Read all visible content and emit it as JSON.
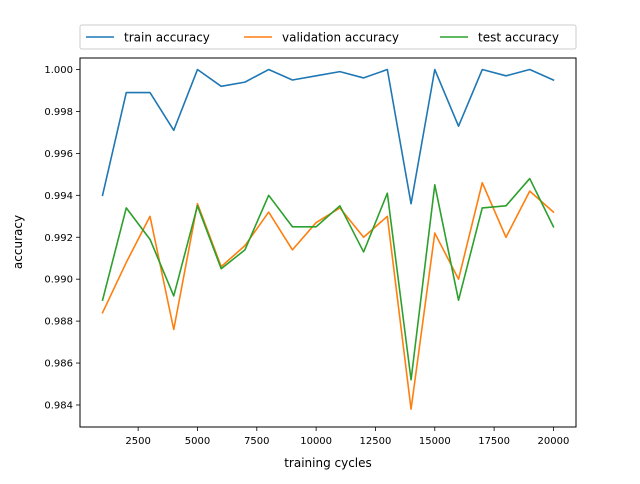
{
  "chart_data": {
    "type": "line",
    "xlabel": "training cycles",
    "ylabel": "accuracy",
    "xlim": [
      50,
      20950
    ],
    "ylim": [
      0.98295,
      1.00055
    ],
    "x_ticks": [
      2500,
      5000,
      7500,
      10000,
      12500,
      15000,
      17500,
      20000
    ],
    "x_tick_labels": [
      "2500",
      "5000",
      "7500",
      "10000",
      "12500",
      "15000",
      "17500",
      "20000"
    ],
    "y_ticks": [
      0.984,
      0.986,
      0.988,
      0.99,
      0.992,
      0.994,
      0.996,
      0.998,
      1.0
    ],
    "y_tick_labels": [
      "0.984",
      "0.986",
      "0.988",
      "0.990",
      "0.992",
      "0.994",
      "0.996",
      "0.998",
      "1.000"
    ],
    "grid": false,
    "legend_position": "top",
    "x": [
      1000,
      2000,
      3000,
      4000,
      5000,
      6000,
      7000,
      8000,
      9000,
      10000,
      11000,
      12000,
      13000,
      14000,
      15000,
      16000,
      17000,
      18000,
      19000,
      20000
    ],
    "series": [
      {
        "name": "train accuracy",
        "color": "#1f77b4",
        "values": [
          0.994,
          0.9989,
          0.9989,
          0.9971,
          1.0,
          0.9992,
          0.9994,
          1.0,
          0.9995,
          0.9997,
          0.9999,
          0.9996,
          1.0,
          0.9936,
          1.0,
          0.9973,
          1.0,
          0.9997,
          1.0,
          0.9995
        ]
      },
      {
        "name": "validation accuracy",
        "color": "#ff7f0e",
        "values": [
          0.9884,
          0.9908,
          0.993,
          0.9876,
          0.9936,
          0.9906,
          0.9916,
          0.9932,
          0.9914,
          0.9927,
          0.9934,
          0.992,
          0.993,
          0.9838,
          0.9922,
          0.99,
          0.9946,
          0.992,
          0.9942,
          0.9932
        ]
      },
      {
        "name": "test accuracy",
        "color": "#2ca02c",
        "values": [
          0.989,
          0.9934,
          0.9919,
          0.9892,
          0.9935,
          0.9905,
          0.9914,
          0.994,
          0.9925,
          0.9925,
          0.9935,
          0.9913,
          0.9941,
          0.9852,
          0.9945,
          0.989,
          0.9934,
          0.9935,
          0.9948,
          0.9925
        ]
      }
    ]
  }
}
